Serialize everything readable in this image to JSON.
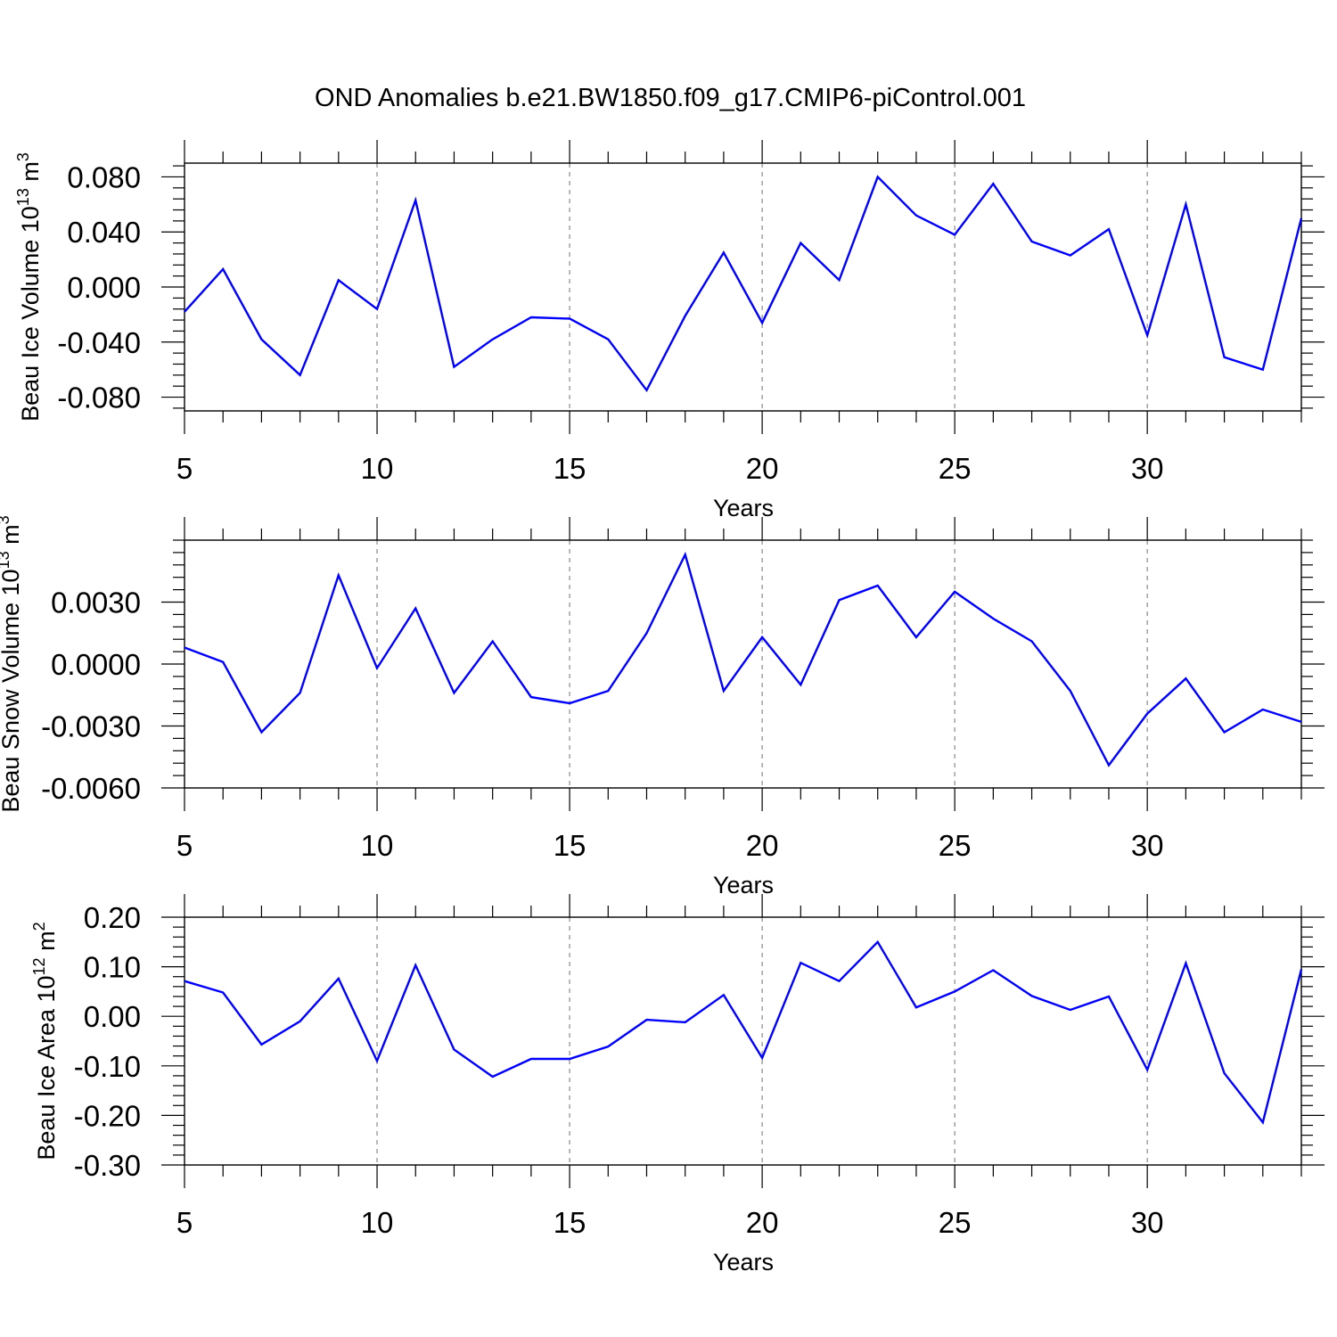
{
  "title": "OND Anomalies b.e21.BW1850.f09_g17.CMIP6-piControl.001",
  "colors": {
    "series": "#0000ff",
    "axes": "#000000",
    "grid": "#888888"
  },
  "chart_data": [
    {
      "type": "line",
      "title": "OND Anomalies b.e21.BW1850.f09_g17.CMIP6-piControl.001",
      "ylabel": {
        "main": "Beau Ice Volume 10",
        "exponent": "13",
        "unit": "m",
        "unit_exp": "3"
      },
      "xlabel": "Years",
      "xlim": [
        5,
        34
      ],
      "ylim": [
        -0.09,
        0.09
      ],
      "x_ticks": [
        5,
        10,
        15,
        20,
        25,
        30
      ],
      "x_tick_labels": [
        "5",
        "10",
        "15",
        "20",
        "25",
        "30"
      ],
      "y_ticks": [
        -0.08,
        -0.04,
        0.0,
        0.04,
        0.08
      ],
      "y_tick_labels": [
        "-0.080",
        "-0.040",
        "0.000",
        "0.040",
        "0.080"
      ],
      "grid": "vertical dashed at major x ticks",
      "x": [
        5,
        6,
        7,
        8,
        9,
        10,
        11,
        12,
        13,
        14,
        15,
        16,
        17,
        18,
        19,
        20,
        21,
        22,
        23,
        24,
        25,
        26,
        27,
        28,
        29,
        30,
        31,
        32,
        33,
        34
      ],
      "series": [
        {
          "name": "Beau Ice Volume",
          "values": [
            -0.018,
            0.013,
            -0.038,
            -0.064,
            0.005,
            -0.016,
            0.063,
            -0.058,
            -0.038,
            -0.022,
            -0.023,
            -0.038,
            -0.075,
            -0.021,
            0.025,
            -0.026,
            0.032,
            0.005,
            0.08,
            0.052,
            0.038,
            0.075,
            0.033,
            0.023,
            0.042,
            -0.035,
            0.06,
            -0.051,
            -0.06,
            0.05
          ]
        }
      ]
    },
    {
      "type": "line",
      "ylabel": {
        "main": "Beau Snow Volume 10",
        "exponent": "13",
        "unit": "m",
        "unit_exp": "3"
      },
      "xlabel": "Years",
      "xlim": [
        5,
        34
      ],
      "ylim": [
        -0.006,
        0.006
      ],
      "x_ticks": [
        5,
        10,
        15,
        20,
        25,
        30
      ],
      "x_tick_labels": [
        "5",
        "10",
        "15",
        "20",
        "25",
        "30"
      ],
      "y_ticks": [
        -0.006,
        -0.003,
        0.0,
        0.003
      ],
      "y_tick_labels": [
        "-0.0060",
        "-0.0030",
        "0.0000",
        "0.0030"
      ],
      "grid": "vertical dashed at major x ticks",
      "x": [
        5,
        6,
        7,
        8,
        9,
        10,
        11,
        12,
        13,
        14,
        15,
        16,
        17,
        18,
        19,
        20,
        21,
        22,
        23,
        24,
        25,
        26,
        27,
        28,
        29,
        30,
        31,
        32,
        33,
        34
      ],
      "series": [
        {
          "name": "Beau Snow Volume",
          "values": [
            0.0008,
            0.0001,
            -0.0033,
            -0.0014,
            0.0043,
            -0.0002,
            0.0027,
            -0.0014,
            0.0011,
            -0.0016,
            -0.0019,
            -0.0013,
            0.0015,
            0.0053,
            -0.0013,
            0.0013,
            -0.001,
            0.0031,
            0.0038,
            0.0013,
            0.0035,
            0.0022,
            0.0011,
            -0.0013,
            -0.0049,
            -0.0024,
            -0.0007,
            -0.0033,
            -0.0022,
            -0.0028
          ]
        }
      ]
    },
    {
      "type": "line",
      "ylabel": {
        "main": "Beau Ice Area 10",
        "exponent": "12",
        "unit": "m",
        "unit_exp": "2"
      },
      "xlabel": "Years",
      "xlim": [
        5,
        34
      ],
      "ylim": [
        -0.3,
        0.2
      ],
      "x_ticks": [
        5,
        10,
        15,
        20,
        25,
        30
      ],
      "x_tick_labels": [
        "5",
        "10",
        "15",
        "20",
        "25",
        "30"
      ],
      "y_ticks": [
        -0.3,
        -0.2,
        -0.1,
        0.0,
        0.1,
        0.2
      ],
      "y_tick_labels": [
        "-0.30",
        "-0.20",
        "-0.10",
        "0.00",
        "0.10",
        "0.20"
      ],
      "grid": "vertical dashed at major x ticks",
      "x": [
        5,
        6,
        7,
        8,
        9,
        10,
        11,
        12,
        13,
        14,
        15,
        16,
        17,
        18,
        19,
        20,
        21,
        22,
        23,
        24,
        25,
        26,
        27,
        28,
        29,
        30,
        31,
        32,
        33,
        34
      ],
      "series": [
        {
          "name": "Beau Ice Area",
          "values": [
            0.071,
            0.048,
            -0.057,
            -0.01,
            0.076,
            -0.09,
            0.103,
            -0.067,
            -0.122,
            -0.086,
            -0.086,
            -0.061,
            -0.007,
            -0.012,
            0.043,
            -0.084,
            0.108,
            0.071,
            0.15,
            0.018,
            0.05,
            0.093,
            0.041,
            0.013,
            0.04,
            -0.108,
            0.107,
            -0.115,
            -0.214,
            0.095
          ]
        }
      ]
    }
  ]
}
